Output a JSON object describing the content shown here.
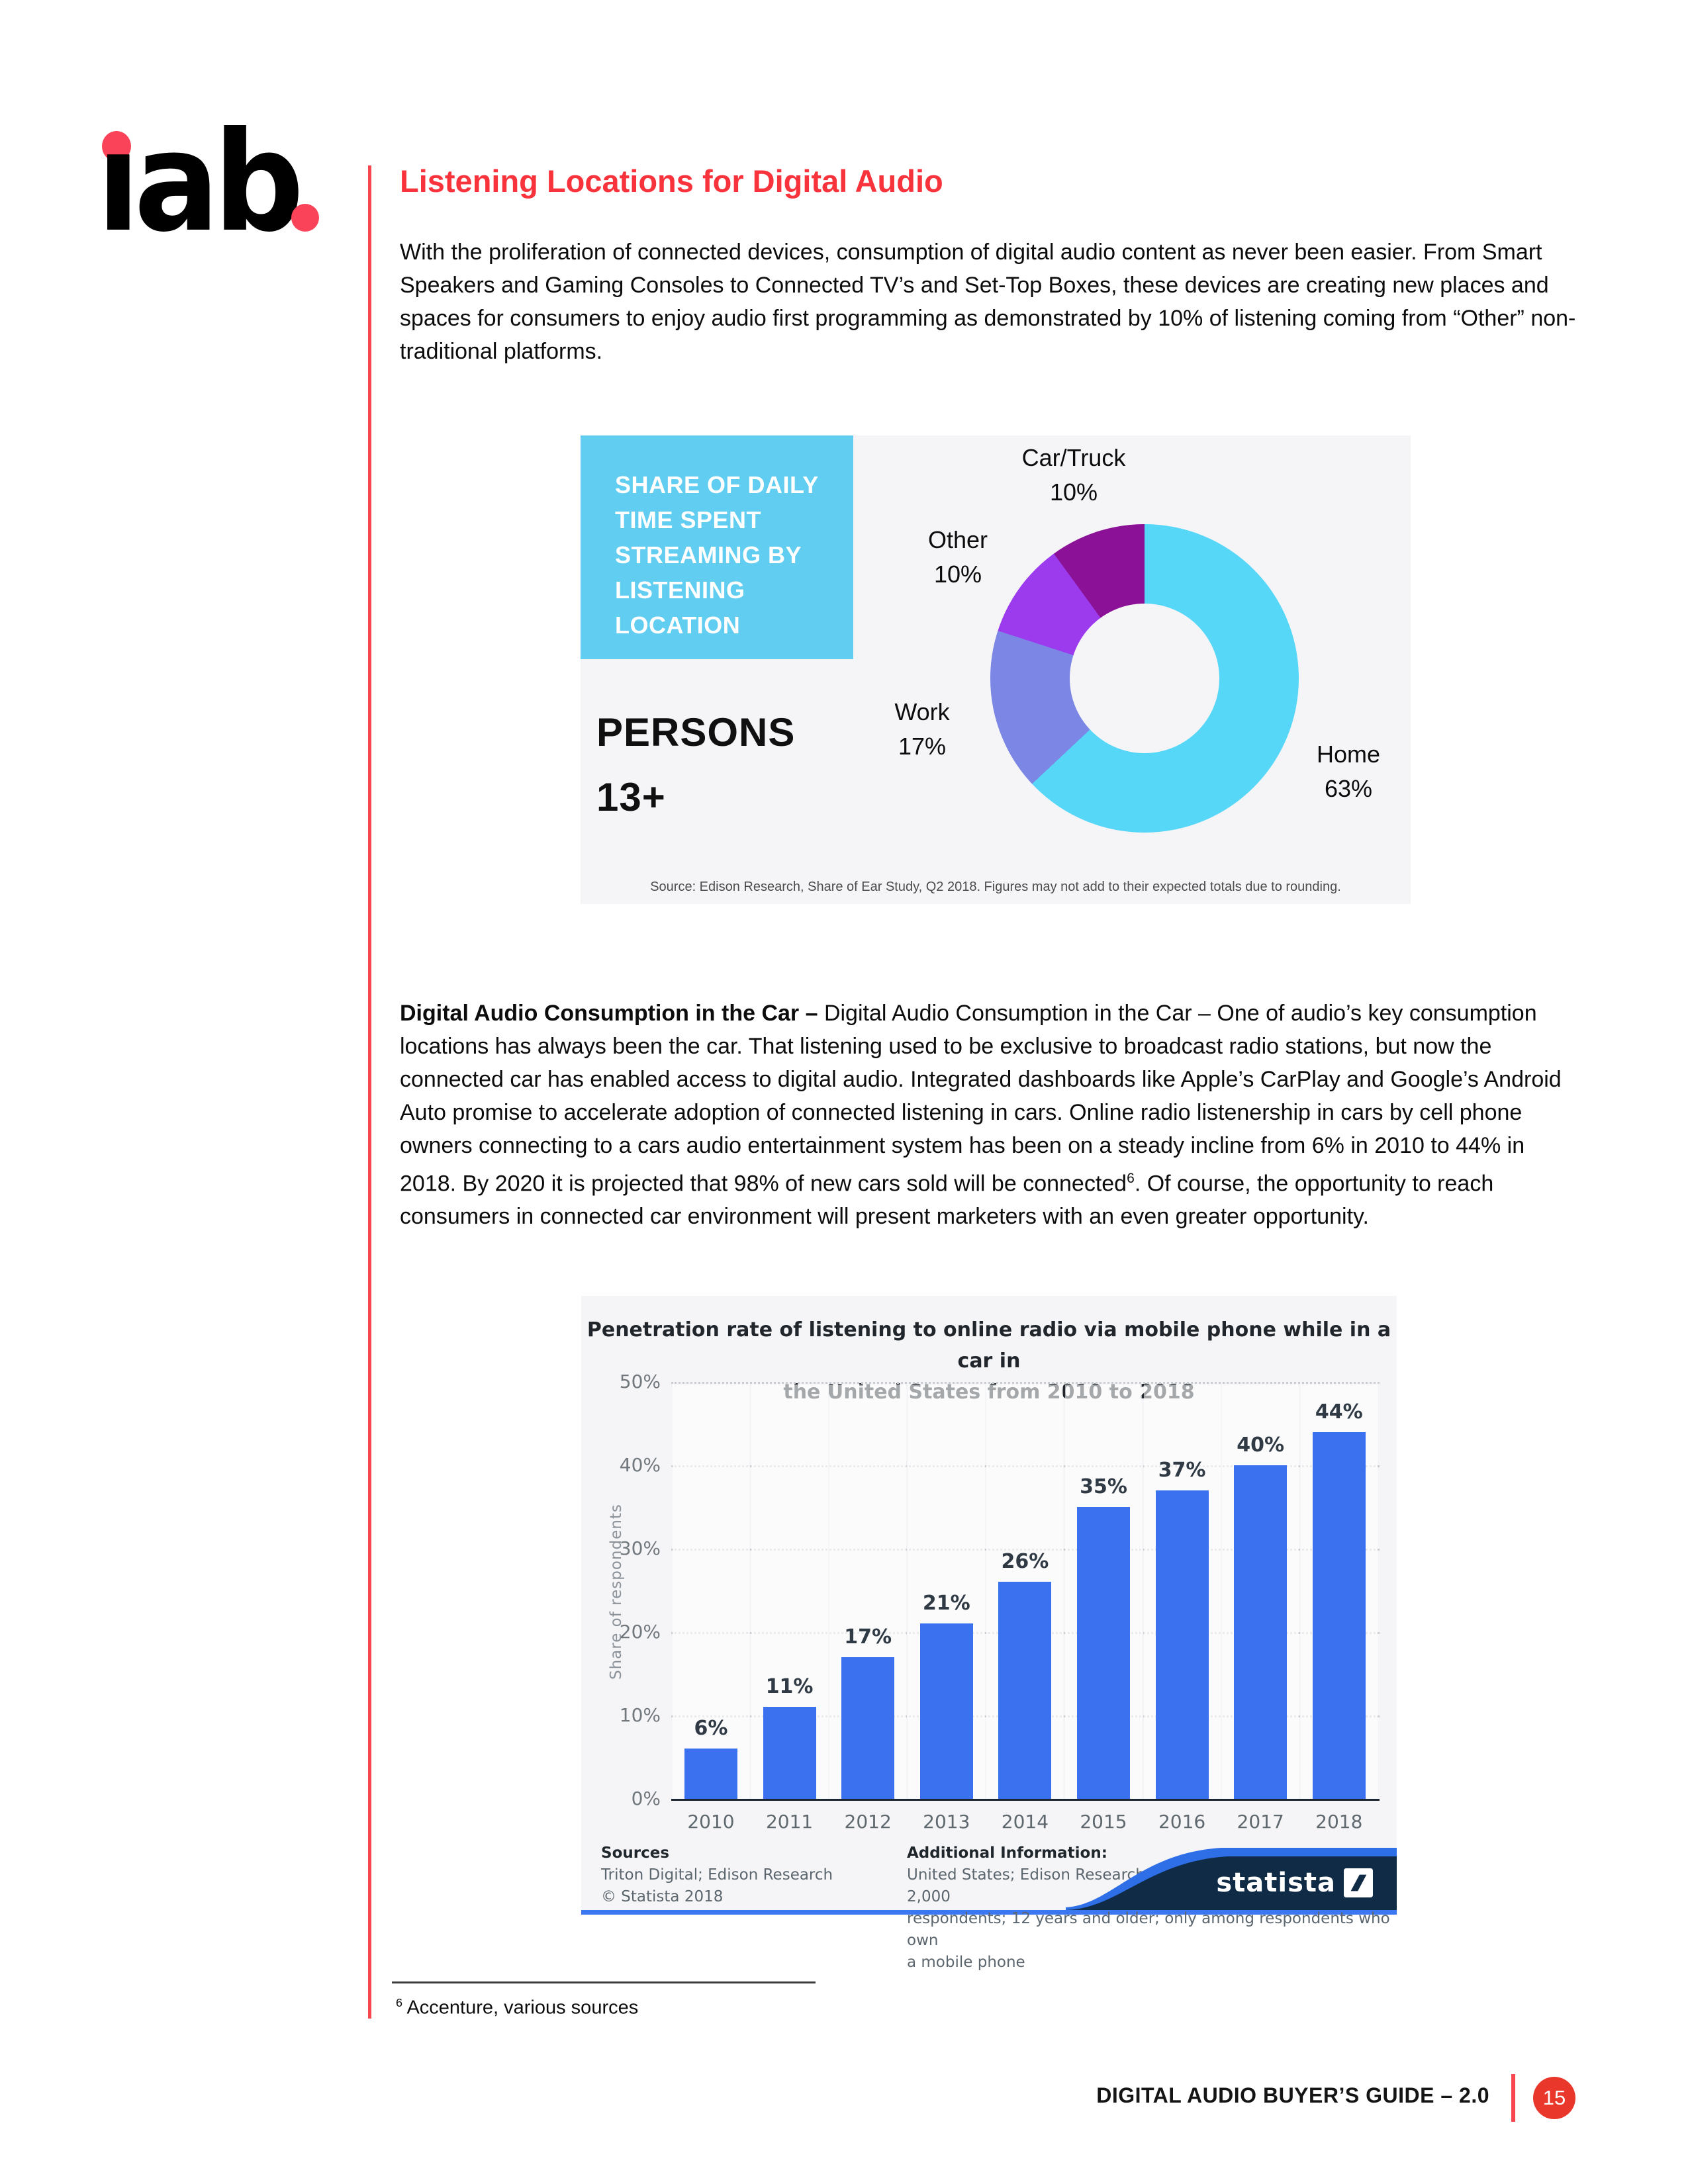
{
  "colors": {
    "accent_red": "#f8464f",
    "logo_dot_red": "#fa4359",
    "heading_red": "#f8333c",
    "circle_red": "#e9382b",
    "panel_bg": "#f5f5f7",
    "cyan_box": "#61cef1",
    "bar_blue": "#3b71ef",
    "navy": "#0f2b46",
    "wave_blue": "#2e6fe8"
  },
  "logo": {
    "text": "ıab"
  },
  "heading": "Listening Locations for Digital Audio",
  "para1": "With the proliferation of connected devices, consumption of digital audio content as never been easier.  From Smart Speakers and Gaming Consoles to Connected TV’s and Set-Top Boxes, these devices are creating new places and spaces for consumers to enjoy audio first programming as demonstrated by 10% of listening coming from “Other” non-traditional platforms.",
  "para2": {
    "bold_lead": "Digital Audio Consumption in the Car – ",
    "before_sup": "Digital Audio Consumption in the Car – One of audio’s key consumption locations has always been the car. That listening used to be exclusive to broadcast radio stations, but now the connected car has enabled access to digital audio. Integrated dashboards like Apple’s CarPlay and Google’s Android Auto promise to accelerate adoption of connected listening in cars. Online radio listenership in cars by cell phone owners connecting to a cars audio entertainment system has been on a steady incline from 6% in 2010 to 44% in 2018.  By 2020 it is projected that 98% of new cars sold will be connected",
    "sup": "6",
    "after_sup": ".  Of course, the opportunity to reach consumers in connected car environment will present marketers with an even greater opportunity."
  },
  "chart_data": [
    {
      "type": "pie",
      "title_lines": [
        "SHARE OF DAILY",
        "TIME SPENT",
        "STREAMING BY",
        "LISTENING",
        "LOCATION"
      ],
      "subtitle_lines": [
        "PERSONS",
        "13+"
      ],
      "slices": [
        {
          "label": "Home",
          "value": 63,
          "display": "63%",
          "color": "#56d7f8"
        },
        {
          "label": "Work",
          "value": 17,
          "display": "17%",
          "color": "#7b86e5"
        },
        {
          "label": "Other",
          "value": 10,
          "display": "10%",
          "color": "#9c3bed"
        },
        {
          "label": "Car/Truck",
          "value": 10,
          "display": "10%",
          "color": "#8b1197"
        }
      ],
      "start_angle_deg": 0,
      "direction": "clockwise",
      "source": "Source: Edison Research, Share of Ear Study, Q2 2018. Figures may not add to their expected totals due to rounding."
    },
    {
      "type": "bar",
      "title_line1": "Penetration rate of listening to online radio via mobile phone while in a car in",
      "title_line2": "the United States from 2010 to 2018",
      "categories": [
        "2010",
        "2011",
        "2012",
        "2013",
        "2014",
        "2015",
        "2016",
        "2017",
        "2018"
      ],
      "values": [
        6,
        11,
        17,
        21,
        26,
        35,
        37,
        40,
        44
      ],
      "value_labels": [
        "6%",
        "11%",
        "17%",
        "21%",
        "26%",
        "35%",
        "37%",
        "40%",
        "44%"
      ],
      "ylabel": "Share of respondents",
      "yticks": [
        "0%",
        "10%",
        "20%",
        "30%",
        "40%",
        "50%"
      ],
      "ylim": [
        0,
        50
      ],
      "grid": "dotted horizontal",
      "bar_color": "#3b71ef",
      "sources_heading": "Sources",
      "sources_lines": [
        "Triton Digital; Edison Research",
        "©  Statista 2018"
      ],
      "additional_heading": "Additional Information:",
      "additional_lines": [
        "United States; Edison Research; January to February 2018; 2,000",
        "respondents; 12 years and older; only among respondents who own",
        "a mobile phone"
      ],
      "brand": "statista"
    }
  ],
  "footnote": {
    "sup": "6",
    "text": " Accenture, various sources"
  },
  "footer": {
    "title": "DIGITAL AUDIO BUYER’S GUIDE – 2.0",
    "page_number": "15"
  }
}
